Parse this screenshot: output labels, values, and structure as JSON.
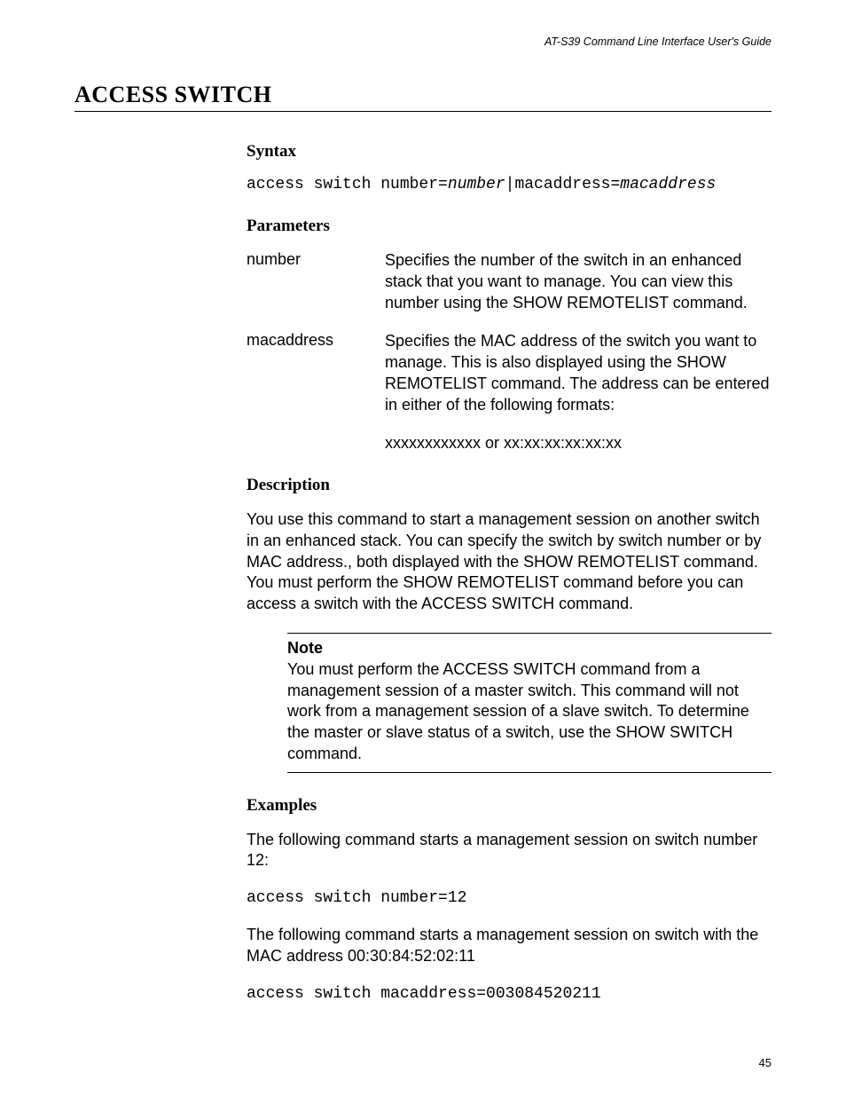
{
  "running_head": "AT-S39 Command Line Interface User's Guide",
  "title": "ACCESS SWITCH",
  "sections": {
    "syntax": {
      "heading": "Syntax",
      "cmd_pre1": "access switch number=",
      "cmd_it1": "number",
      "cmd_mid": "|macaddress=",
      "cmd_it2": "macaddress"
    },
    "parameters": {
      "heading": "Parameters",
      "rows": [
        {
          "term": "number",
          "def": "Specifies the number of the switch in an enhanced stack that you want to manage. You can view this number using the SHOW REMOTELIST command."
        },
        {
          "term": "macaddress",
          "def": "Specifies the MAC address of the switch you want to manage. This is also displayed using the SHOW REMOTELIST command. The address can be entered in either of the following formats:"
        }
      ],
      "extra": "xxxxxxxxxxxx or xx:xx:xx:xx:xx:xx"
    },
    "description": {
      "heading": "Description",
      "para": "You use this command to start a management session on another switch in an enhanced stack. You can specify the switch by switch number or by MAC address., both displayed with the SHOW REMOTELIST command. You must perform the SHOW REMOTELIST command before you can access a switch with the ACCESS SWITCH command.",
      "note_label": "Note",
      "note_body": "You must perform the ACCESS SWITCH command from a management session of a master switch. This command will not work from a management session of a slave switch. To determine the master or slave status of a switch, use the SHOW SWITCH command."
    },
    "examples": {
      "heading": "Examples",
      "p1": "The following command starts a management session on switch number 12:",
      "c1": "access switch number=12",
      "p2": "The following command starts a management session on switch with the MAC address 00:30:84:52:02:11",
      "c2": "access switch macaddress=003084520211"
    }
  },
  "page_number": "45"
}
